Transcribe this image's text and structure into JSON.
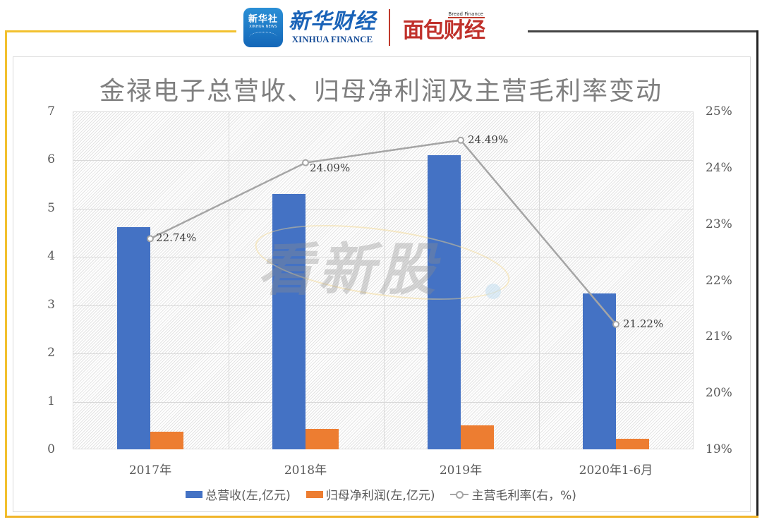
{
  "header": {
    "xinhua_badge_cn": "新华社",
    "xinhua_badge_en": "XINHUA NEWS",
    "xinhua_finance_cn": "新华财经",
    "xinhua_finance_en": "XINHUA FINANCE",
    "bread_finance_en": "Bread Finance",
    "bread_finance_cn": "面包财经"
  },
  "watermark": "看新股",
  "colors": {
    "revenue": "#4472c4",
    "net_profit": "#ed7d31",
    "margin_line": "#a5a5a5",
    "frame_gold": "#f2c12e",
    "frame_dark": "#222222"
  },
  "chart_data": {
    "type": "bar",
    "title": "金禄电子总营收、归母净利润及主营毛利率变动",
    "categories": [
      "2017年",
      "2018年",
      "2019年",
      "2020年1-6月"
    ],
    "series": [
      {
        "name": "总营收(左,亿元)",
        "type": "bar",
        "axis": "left",
        "values": [
          4.6,
          5.29,
          6.1,
          3.23
        ]
      },
      {
        "name": "归母净利润(左,亿元)",
        "type": "bar",
        "axis": "left",
        "values": [
          0.37,
          0.42,
          0.5,
          0.22
        ]
      },
      {
        "name": "主营毛利率(右，%)",
        "type": "line",
        "axis": "right",
        "values": [
          22.74,
          24.09,
          24.49,
          21.22
        ],
        "labels": [
          "22.74%",
          "24.09%",
          "24.49%",
          "21.22%"
        ]
      }
    ],
    "xlabel": "",
    "ylabel_left": "",
    "ylabel_right": "",
    "ylim_left": [
      0,
      7
    ],
    "ylim_right": [
      19,
      25
    ],
    "yticks_left": [
      "0",
      "1",
      "2",
      "3",
      "4",
      "5",
      "6",
      "7"
    ],
    "yticks_right": [
      "19%",
      "20%",
      "21%",
      "22%",
      "23%",
      "24%",
      "25%"
    ],
    "grid": true,
    "legend_position": "bottom"
  }
}
